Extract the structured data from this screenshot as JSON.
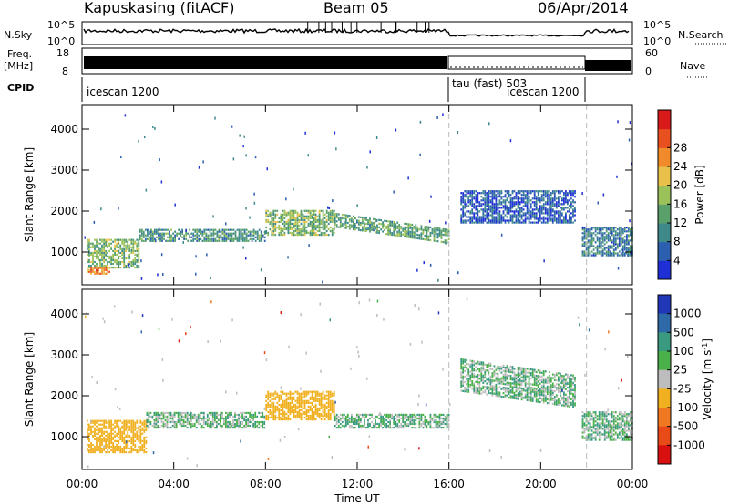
{
  "header": {
    "station": "Kapuskasing (fitACF)",
    "beam": "Beam 05",
    "date": "06/Apr/2014"
  },
  "top_strip": {
    "nsky_label": "N.Sky",
    "nsky_ticks": [
      "10^5",
      "10^0"
    ],
    "nsearch_label": "N.Search",
    "nsearch_ticks": [
      "10^5",
      "10^0"
    ],
    "freq_label_line1": "Freq.",
    "freq_label_line2": "[MHz]",
    "freq_ticks": [
      "18",
      "8"
    ],
    "nave_label": "Nave",
    "nave_ticks": [
      "60",
      "0"
    ],
    "cpid_label": "CPID",
    "cpid_segments": [
      {
        "label": "icescan 1200",
        "start_h": 0,
        "end_h": 16
      },
      {
        "label": "tau (fast) 503",
        "start_h": 16,
        "end_h": 22
      },
      {
        "label": "icescan 1200",
        "start_h": 16,
        "end_h": 22
      }
    ]
  },
  "chart_data": [
    {
      "type": "heatmap",
      "panel": "power",
      "ylabel": "Slant Range [km]",
      "xlabel": "Time UT",
      "xlim_hours": [
        0,
        24
      ],
      "ylim": [
        200,
        4600
      ],
      "yticks": [
        "1000",
        "2000",
        "3000",
        "4000"
      ],
      "colorbar_label": "Power [dB]",
      "colorbar_ticks": [
        "4",
        "8",
        "12",
        "16",
        "20",
        "24",
        "28"
      ],
      "colorbar_colors": [
        "#1f2fd6",
        "#2d5fb0",
        "#3e8a8a",
        "#5aa06a",
        "#9bc25a",
        "#e8c04a",
        "#f08a2a",
        "#e85020",
        "#d81a1a"
      ],
      "bands": [
        {
          "t0": 0.2,
          "t1": 2.5,
          "r0": 600,
          "r1": 1300,
          "value": 14
        },
        {
          "t0": 0.2,
          "t1": 1.2,
          "r0": 450,
          "r1": 600,
          "value": 24
        },
        {
          "t0": 2.5,
          "t1": 8.0,
          "r0": 1250,
          "r1": 1550,
          "value": 10
        },
        {
          "t0": 8.0,
          "t1": 11.0,
          "r0": 1400,
          "r1": 2000,
          "value": 14
        },
        {
          "t0": 11.0,
          "t1": 16.0,
          "r0": 1200,
          "r1": 1550,
          "value": 12
        },
        {
          "t0": 16.5,
          "t1": 21.5,
          "r0": 1700,
          "r1": 2500,
          "value": 5
        },
        {
          "t0": 21.8,
          "t1": 24.0,
          "r0": 900,
          "r1": 1600,
          "value": 8
        }
      ]
    },
    {
      "type": "heatmap",
      "panel": "velocity",
      "ylabel": "Slant Range [km]",
      "xlabel": "Time UT",
      "xlim_hours": [
        0,
        24
      ],
      "ylim": [
        200,
        4600
      ],
      "yticks": [
        "1000",
        "2000",
        "3000",
        "4000"
      ],
      "xticks": [
        "00:00",
        "04:00",
        "08:00",
        "12:00",
        "16:00",
        "20:00",
        "00:00"
      ],
      "colorbar_label": "Velocity [m s^-1]",
      "colorbar_ticks": [
        "1000",
        "500",
        "100",
        "25",
        "-25",
        "-100",
        "-500",
        "-1000"
      ],
      "colorbar_colors": [
        "#2038b8",
        "#2e6aa8",
        "#3a9a80",
        "#4ab04a",
        "#bdbdbd",
        "#f0b020",
        "#f07820",
        "#e84a18",
        "#d81010"
      ],
      "bands": [
        {
          "t0": 0.2,
          "t1": 2.8,
          "r0": 600,
          "r1": 1400,
          "value": -300
        },
        {
          "t0": 2.8,
          "t1": 8.0,
          "r0": 1200,
          "r1": 1600,
          "value": 0
        },
        {
          "t0": 8.0,
          "t1": 11.0,
          "r0": 1400,
          "r1": 2100,
          "value": -200
        },
        {
          "t0": 11.0,
          "t1": 16.0,
          "r0": 1200,
          "r1": 1550,
          "value": 0
        },
        {
          "t0": 16.5,
          "t1": 21.5,
          "r0": 1700,
          "r1": 2500,
          "value": 0
        },
        {
          "t0": 21.8,
          "t1": 24.0,
          "r0": 900,
          "r1": 1600,
          "value": 0
        }
      ]
    }
  ]
}
